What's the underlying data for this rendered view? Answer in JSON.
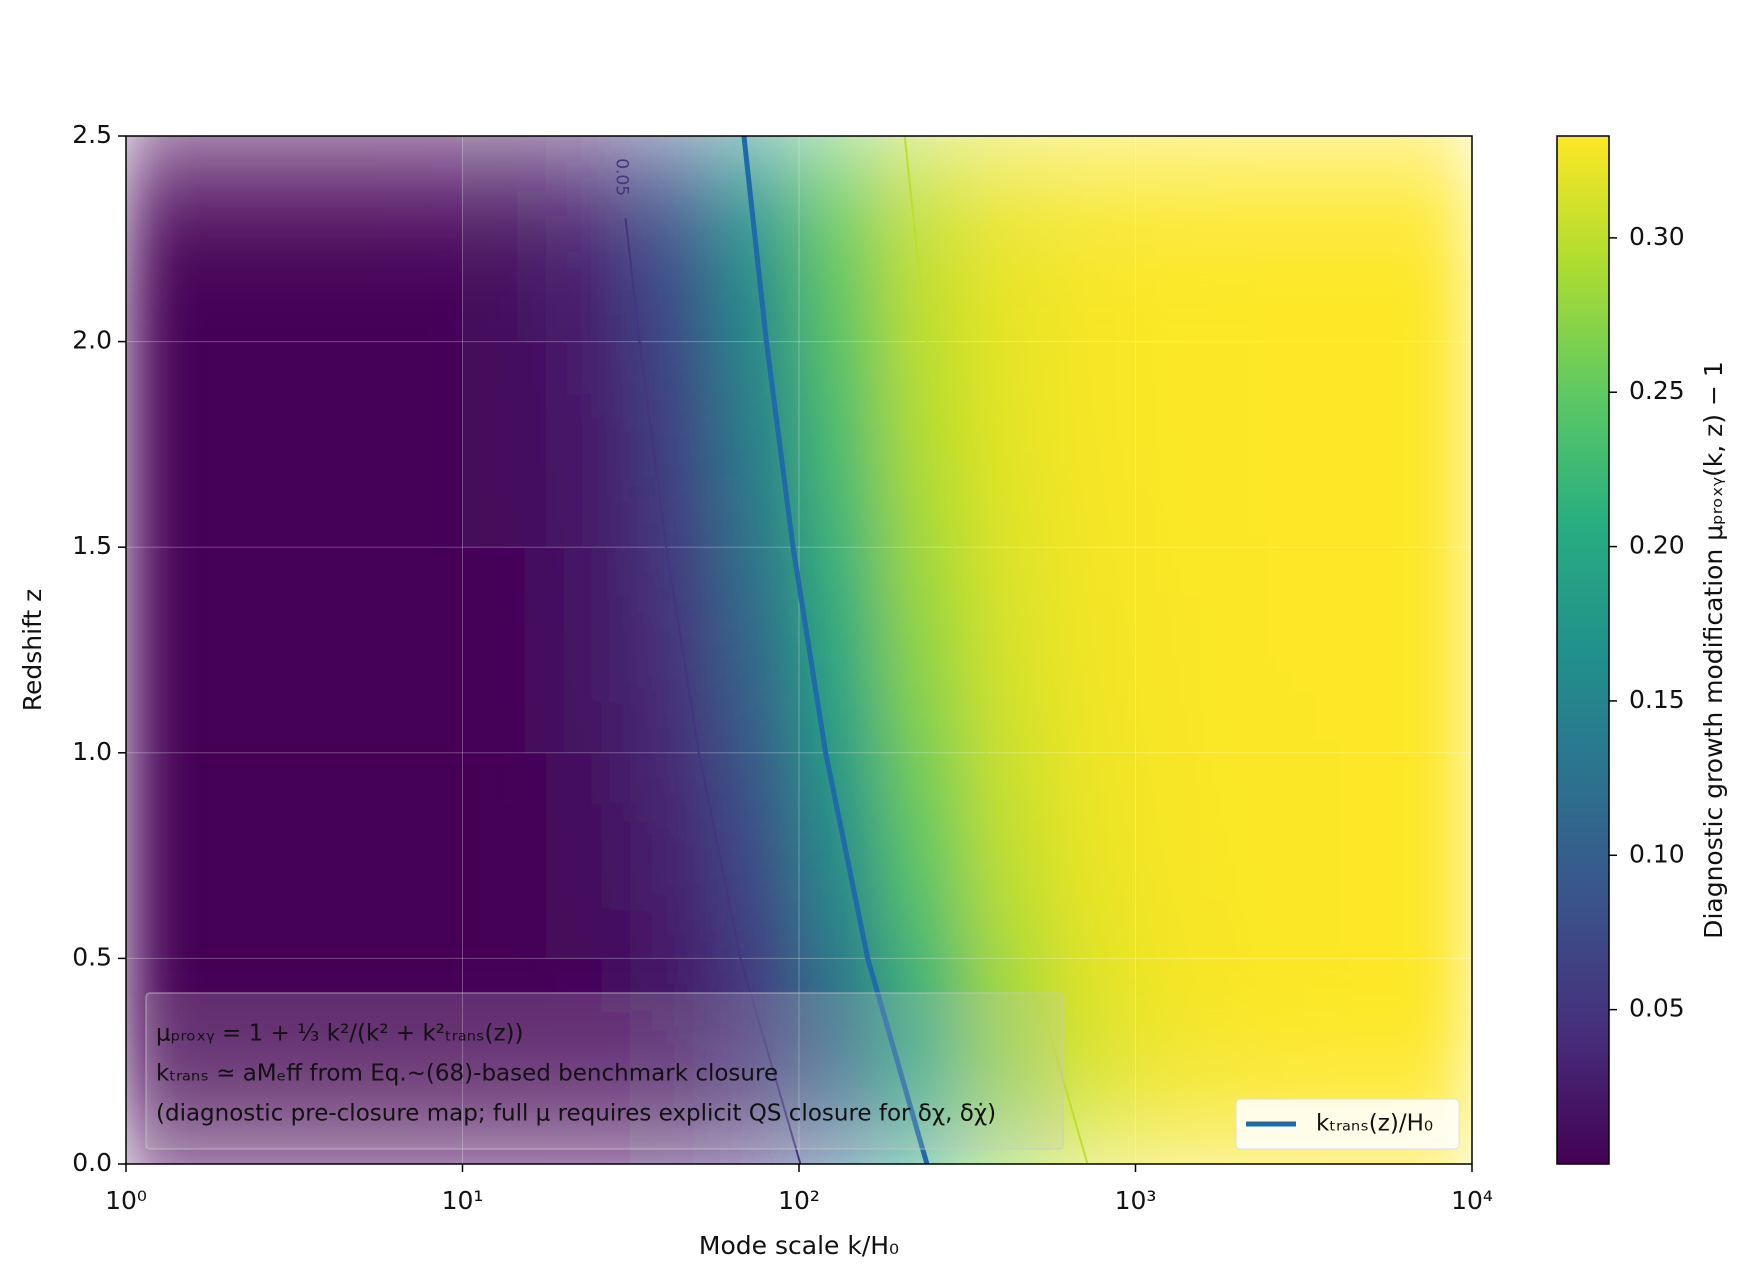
{
  "chart_data": {
    "type": "heatmap",
    "x_label": "Mode scale k/H₀",
    "y_label": "Redshift z",
    "colorbar_label": "Diagnostic growth modification μₚᵣₒₓᵧ(k, z) − 1",
    "xscale": "log",
    "xlim": [
      1,
      10000
    ],
    "xticks": [
      {
        "value": 1,
        "label": "10⁰"
      },
      {
        "value": 10,
        "label": "10¹"
      },
      {
        "value": 100,
        "label": "10²"
      },
      {
        "value": 1000,
        "label": "10³"
      },
      {
        "value": 10000,
        "label": "10⁴"
      }
    ],
    "ylim": [
      0,
      2.5
    ],
    "yticks": [
      {
        "value": 0,
        "label": "0.0"
      },
      0.5,
      {
        "value": 1,
        "label": "1.0"
      },
      1.5,
      {
        "value": 2,
        "label": "2.0"
      },
      2.5
    ],
    "grid": true,
    "colormap": "viridis",
    "clim": [
      0,
      0.333
    ],
    "cticks": [
      0.05,
      {
        "value": 0.1,
        "label": "0.10"
      },
      0.15,
      {
        "value": 0.2,
        "label": "0.20"
      },
      0.25,
      {
        "value": 0.3,
        "label": "0.30"
      }
    ],
    "x": [
      1.33,
      2.37,
      4.22,
      7.5,
      13.3,
      23.7,
      42.2,
      75,
      133,
      237,
      422,
      750,
      1334,
      2371,
      4217,
      7499
    ],
    "y": [
      0.25,
      0.75,
      1.25,
      1.75,
      2.25
    ],
    "z": [
      [
        0,
        0,
        0,
        0.001,
        0.002,
        0.005,
        0.015,
        0.044,
        0.108,
        0.201,
        0.276,
        0.313,
        0.327,
        0.331,
        0.333,
        0.333
      ],
      [
        0,
        0,
        0,
        0.001,
        0.003,
        0.01,
        0.029,
        0.077,
        0.162,
        0.25,
        0.302,
        0.323,
        0.33,
        0.332,
        0.333,
        0.333
      ],
      [
        0,
        0,
        0.001,
        0.002,
        0.005,
        0.016,
        0.045,
        0.11,
        0.202,
        0.277,
        0.313,
        0.327,
        0.331,
        0.333,
        0.333,
        0.333
      ],
      [
        0,
        0,
        0.001,
        0.002,
        0.008,
        0.023,
        0.063,
        0.142,
        0.233,
        0.294,
        0.32,
        0.329,
        0.332,
        0.333,
        0.333,
        0.333
      ],
      [
        0,
        0,
        0.001,
        0.003,
        0.01,
        0.031,
        0.082,
        0.169,
        0.255,
        0.304,
        0.323,
        0.33,
        0.332,
        0.333,
        0.333,
        0.333
      ]
    ],
    "contours": [
      {
        "level": 0.05,
        "label": "0.05",
        "x": [
          101,
          67,
          50.4,
          40.3,
          33.6,
          30.5,
          null,
          28.8
        ],
        "y": [
          0,
          0.5,
          1,
          1.5,
          2,
          2.3,
          null,
          2.5
        ]
      },
      {
        "level": 0.3,
        "label": "0.30",
        "x": [
          720,
          480,
          360,
          288,
          266,
          null,
          248,
          240,
          206
        ],
        "y": [
          0,
          0.5,
          1,
          1.5,
          1.7,
          null,
          1.9,
          2,
          2.5
        ]
      }
    ],
    "series": [
      {
        "name": "kₜᵣₐₙₛ(z)/H₀",
        "color": "#1f6aa8",
        "x": [
          240,
          160,
          120,
          96,
          80,
          68.6
        ],
        "y": [
          0,
          0.5,
          1,
          1.5,
          2,
          2.5
        ]
      }
    ],
    "legend": "lower right",
    "annotation": [
      "μₚᵣₒₓᵧ = 1 + ⅓ k²/(k² + k²ₜᵣₐₙₛ(z))",
      "kₜᵣₐₙₛ ≃ aMₑff from Eq.~(68)-based benchmark closure",
      "(diagnostic pre-closure map; full μ requires explicit QS closure for δχ, δχ̇)"
    ]
  }
}
